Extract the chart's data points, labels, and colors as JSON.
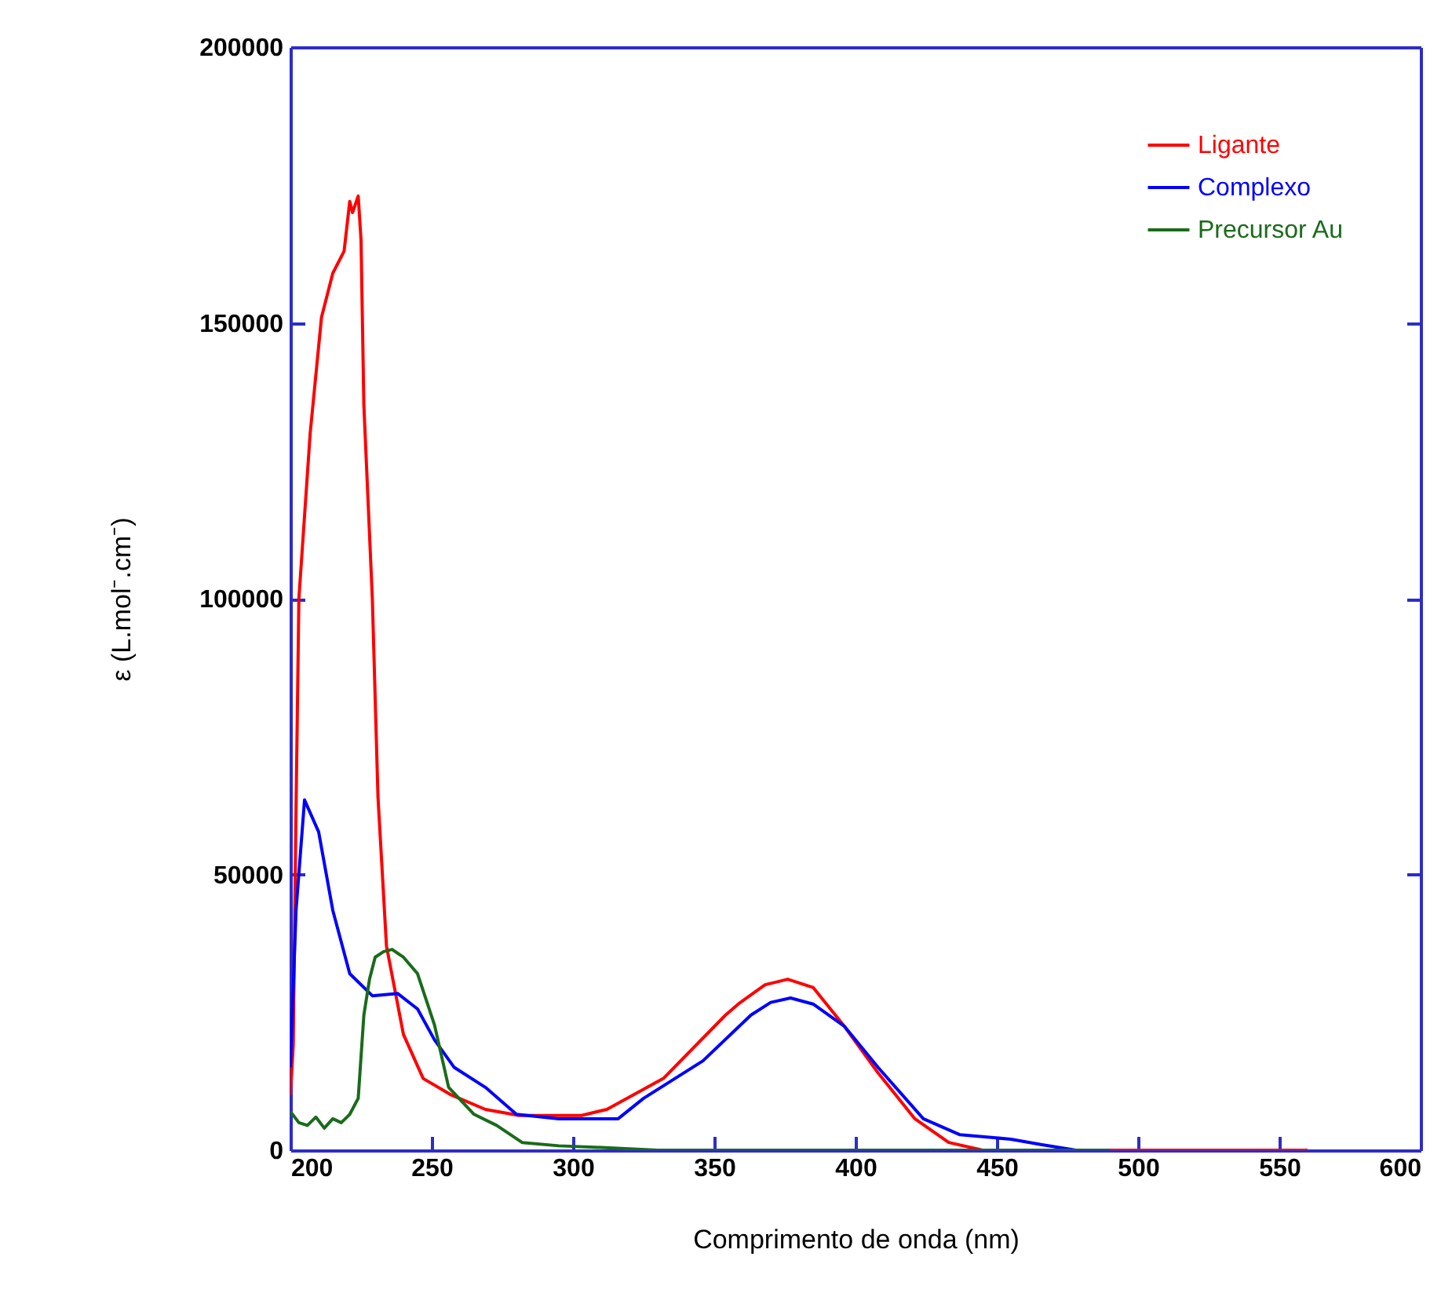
{
  "chart_data": {
    "type": "line",
    "xlabel": "Comprimento de onda (nm)",
    "ylabel": "ε (L.mol⁻.cm⁻)",
    "xlim": [
      200,
      600
    ],
    "xticks": [
      200,
      250,
      300,
      350,
      400,
      450,
      500,
      550,
      600
    ],
    "ylim": [
      0,
      200000
    ],
    "yticks": [
      0,
      50000,
      100000,
      150000,
      200000
    ],
    "grid": false,
    "legend": "top right",
    "marker": "none",
    "line_style": "solid",
    "series": [
      {
        "name": "Ligante",
        "color": "#ff0000",
        "x": [
          200,
          201,
          202,
          203,
          207,
          211,
          215,
          219,
          221,
          222,
          224,
          225,
          226,
          229,
          231,
          234,
          240,
          247,
          257,
          269,
          281,
          303,
          312,
          332,
          354,
          359,
          368,
          376,
          385,
          396,
          408,
          421,
          433,
          445,
          500,
          560
        ],
        "values": [
          10000,
          19000,
          62000,
          100000,
          130000,
          151000,
          159000,
          163000,
          172000,
          170000,
          173000,
          165000,
          135000,
          100000,
          64000,
          37000,
          21000,
          13000,
          10000,
          7400,
          6300,
          6300,
          7400,
          13000,
          24500,
          26700,
          30000,
          31000,
          29500,
          22500,
          14000,
          5700,
          1400,
          0,
          0,
          0
        ]
      },
      {
        "name": "Complexo",
        "color": "#0000ff",
        "x": [
          200,
          202,
          205,
          210,
          215,
          221,
          229,
          238,
          245,
          251,
          258,
          269,
          280,
          295,
          310,
          316,
          325,
          346,
          363,
          370,
          377,
          385,
          396,
          408,
          424,
          437,
          455,
          466,
          478
        ],
        "values": [
          15000,
          43500,
          63500,
          57700,
          43500,
          32000,
          28000,
          28400,
          25600,
          20000,
          15000,
          11400,
          6500,
          5700,
          5700,
          5700,
          9400,
          16200,
          24500,
          26800,
          27600,
          26500,
          22500,
          15000,
          5700,
          2800,
          2000,
          1000,
          0
        ]
      },
      {
        "name": "Precursor Au",
        "color": "#1a6b1a",
        "x": [
          200,
          203,
          206,
          209,
          212,
          215,
          218,
          221,
          224,
          226,
          228,
          230,
          233,
          236,
          240,
          245,
          251,
          256,
          265,
          273,
          282,
          295,
          310,
          330,
          400,
          490
        ],
        "values": [
          7000,
          5000,
          4500,
          6000,
          4000,
          5700,
          5000,
          6500,
          9400,
          24500,
          31000,
          35000,
          36000,
          36400,
          35000,
          32000,
          22700,
          11400,
          6500,
          4500,
          1400,
          800,
          500,
          0,
          0,
          0
        ]
      }
    ]
  }
}
